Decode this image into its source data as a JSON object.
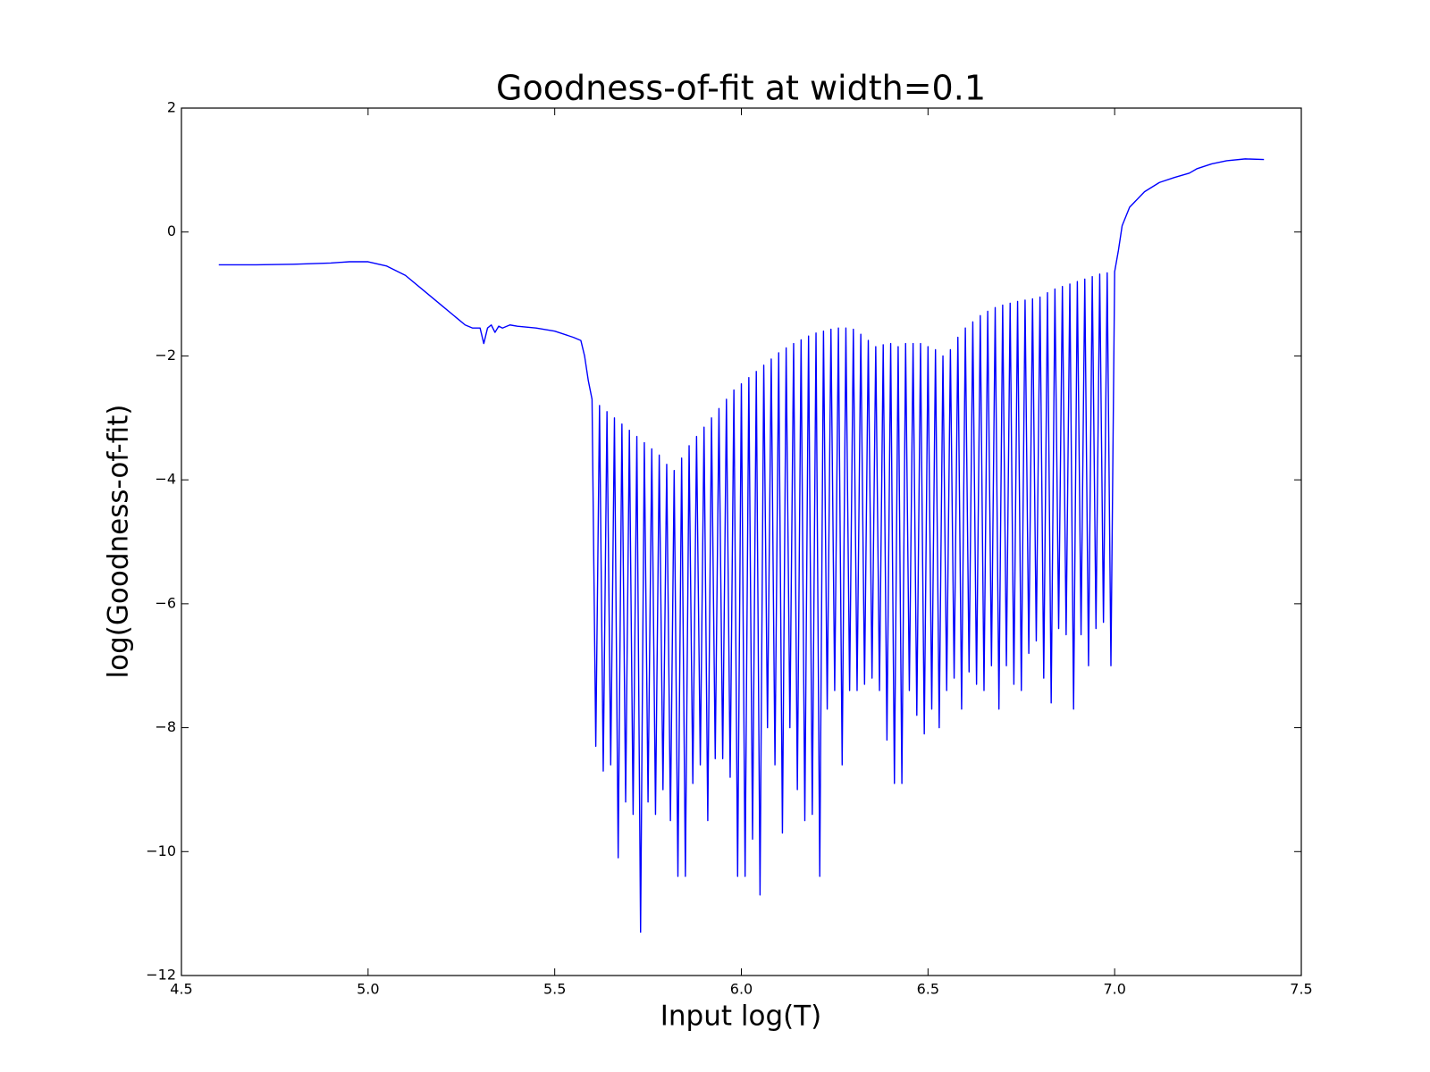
{
  "chart_data": {
    "type": "line",
    "title": "Goodness-of-fit at width=0.1",
    "x_label": "Input log(T)",
    "y_label": "log(Goodness-of-fit)",
    "color": "#0000ff",
    "grid": false,
    "xlim": [
      4.5,
      7.5
    ],
    "xticks": [
      {
        "value": 4.5,
        "label": "4.5"
      },
      {
        "value": 5.0,
        "label": "5.0"
      },
      {
        "value": 5.5,
        "label": "5.5"
      },
      {
        "value": 6.0,
        "label": "6.0"
      },
      {
        "value": 6.5,
        "label": "6.5"
      },
      {
        "value": 7.0,
        "label": "7.0"
      },
      {
        "value": 7.5,
        "label": "7.5"
      }
    ],
    "ylim": [
      -12,
      2
    ],
    "yticks": [
      {
        "value": -12,
        "label": "−12"
      },
      {
        "value": -10,
        "label": "−10"
      },
      {
        "value": -8,
        "label": "−8"
      },
      {
        "value": -6,
        "label": "−6"
      },
      {
        "value": -4,
        "label": "−4"
      },
      {
        "value": -2,
        "label": "−2"
      },
      0,
      2
    ],
    "x": [
      4.6,
      4.7,
      4.8,
      4.9,
      4.95,
      5.0,
      5.05,
      5.1,
      5.15,
      5.2,
      5.24,
      5.26,
      5.28,
      5.3,
      5.31,
      5.32,
      5.33,
      5.34,
      5.35,
      5.36,
      5.38,
      5.4,
      5.45,
      5.5,
      5.55,
      5.57,
      5.58,
      5.59,
      5.6,
      5.61,
      5.62,
      5.63,
      5.64,
      5.65,
      5.66,
      5.67,
      5.68,
      5.69,
      5.7,
      5.71,
      5.72,
      5.73,
      5.74,
      5.75,
      5.76,
      5.77,
      5.78,
      5.79,
      5.8,
      5.81,
      5.82,
      5.83,
      5.84,
      5.85,
      5.86,
      5.87,
      5.88,
      5.89,
      5.9,
      5.91,
      5.92,
      5.93,
      5.94,
      5.95,
      5.96,
      5.97,
      5.98,
      5.99,
      6.0,
      6.01,
      6.02,
      6.03,
      6.04,
      6.05,
      6.06,
      6.07,
      6.08,
      6.09,
      6.1,
      6.11,
      6.12,
      6.13,
      6.14,
      6.15,
      6.16,
      6.17,
      6.18,
      6.19,
      6.2,
      6.21,
      6.22,
      6.23,
      6.24,
      6.25,
      6.26,
      6.27,
      6.28,
      6.29,
      6.3,
      6.31,
      6.32,
      6.33,
      6.34,
      6.35,
      6.36,
      6.37,
      6.38,
      6.39,
      6.4,
      6.41,
      6.42,
      6.43,
      6.44,
      6.45,
      6.46,
      6.47,
      6.48,
      6.49,
      6.5,
      6.51,
      6.52,
      6.53,
      6.54,
      6.55,
      6.56,
      6.57,
      6.58,
      6.59,
      6.6,
      6.61,
      6.62,
      6.63,
      6.64,
      6.65,
      6.66,
      6.67,
      6.68,
      6.69,
      6.7,
      6.71,
      6.72,
      6.73,
      6.74,
      6.75,
      6.76,
      6.77,
      6.78,
      6.79,
      6.8,
      6.81,
      6.82,
      6.83,
      6.84,
      6.85,
      6.86,
      6.87,
      6.88,
      6.89,
      6.9,
      6.91,
      6.92,
      6.93,
      6.94,
      6.95,
      6.96,
      6.97,
      6.98,
      6.99,
      7.0,
      7.01,
      7.02,
      7.04,
      7.08,
      7.12,
      7.16,
      7.2,
      7.22,
      7.26,
      7.3,
      7.35,
      7.4
    ],
    "values": [
      -0.53,
      -0.53,
      -0.52,
      -0.5,
      -0.48,
      -0.48,
      -0.55,
      -0.7,
      -0.95,
      -1.2,
      -1.4,
      -1.5,
      -1.55,
      -1.55,
      -1.8,
      -1.55,
      -1.5,
      -1.62,
      -1.52,
      -1.55,
      -1.5,
      -1.52,
      -1.55,
      -1.6,
      -1.7,
      -1.75,
      -2.0,
      -2.4,
      -2.7,
      -8.3,
      -2.8,
      -8.7,
      -2.9,
      -8.6,
      -3.0,
      -10.1,
      -3.1,
      -9.2,
      -3.2,
      -9.4,
      -3.3,
      -11.3,
      -3.4,
      -9.2,
      -3.5,
      -9.4,
      -3.6,
      -9.0,
      -3.75,
      -9.5,
      -3.85,
      -10.4,
      -3.65,
      -10.4,
      -3.45,
      -8.9,
      -3.3,
      -8.6,
      -3.15,
      -9.5,
      -3.0,
      -8.5,
      -2.85,
      -8.5,
      -2.7,
      -8.8,
      -2.55,
      -10.4,
      -2.45,
      -10.4,
      -2.35,
      -9.8,
      -2.25,
      -10.7,
      -2.15,
      -8.0,
      -2.05,
      -8.6,
      -1.95,
      -9.7,
      -1.87,
      -8.0,
      -1.8,
      -9.0,
      -1.74,
      -9.5,
      -1.68,
      -9.4,
      -1.63,
      -10.4,
      -1.6,
      -7.7,
      -1.57,
      -7.4,
      -1.55,
      -8.6,
      -1.55,
      -7.4,
      -1.57,
      -7.4,
      -1.65,
      -7.3,
      -1.75,
      -7.2,
      -1.85,
      -7.4,
      -1.82,
      -8.2,
      -1.8,
      -8.9,
      -1.85,
      -8.9,
      -1.8,
      -7.4,
      -1.8,
      -7.8,
      -1.8,
      -8.1,
      -1.85,
      -7.7,
      -1.9,
      -8.0,
      -2.0,
      -7.4,
      -1.9,
      -7.2,
      -1.7,
      -7.7,
      -1.55,
      -7.1,
      -1.45,
      -7.3,
      -1.35,
      -7.4,
      -1.28,
      -7.0,
      -1.22,
      -7.7,
      -1.18,
      -7.0,
      -1.15,
      -7.3,
      -1.12,
      -7.4,
      -1.1,
      -6.8,
      -1.08,
      -6.6,
      -1.05,
      -7.2,
      -0.98,
      -7.6,
      -0.92,
      -6.4,
      -0.88,
      -6.5,
      -0.84,
      -7.7,
      -0.8,
      -6.5,
      -0.76,
      -7.0,
      -0.72,
      -6.4,
      -0.68,
      -6.3,
      -0.66,
      -7.0,
      -0.64,
      -0.3,
      0.1,
      0.4,
      0.65,
      0.8,
      0.88,
      0.95,
      1.02,
      1.1,
      1.15,
      1.18,
      1.17
    ]
  }
}
